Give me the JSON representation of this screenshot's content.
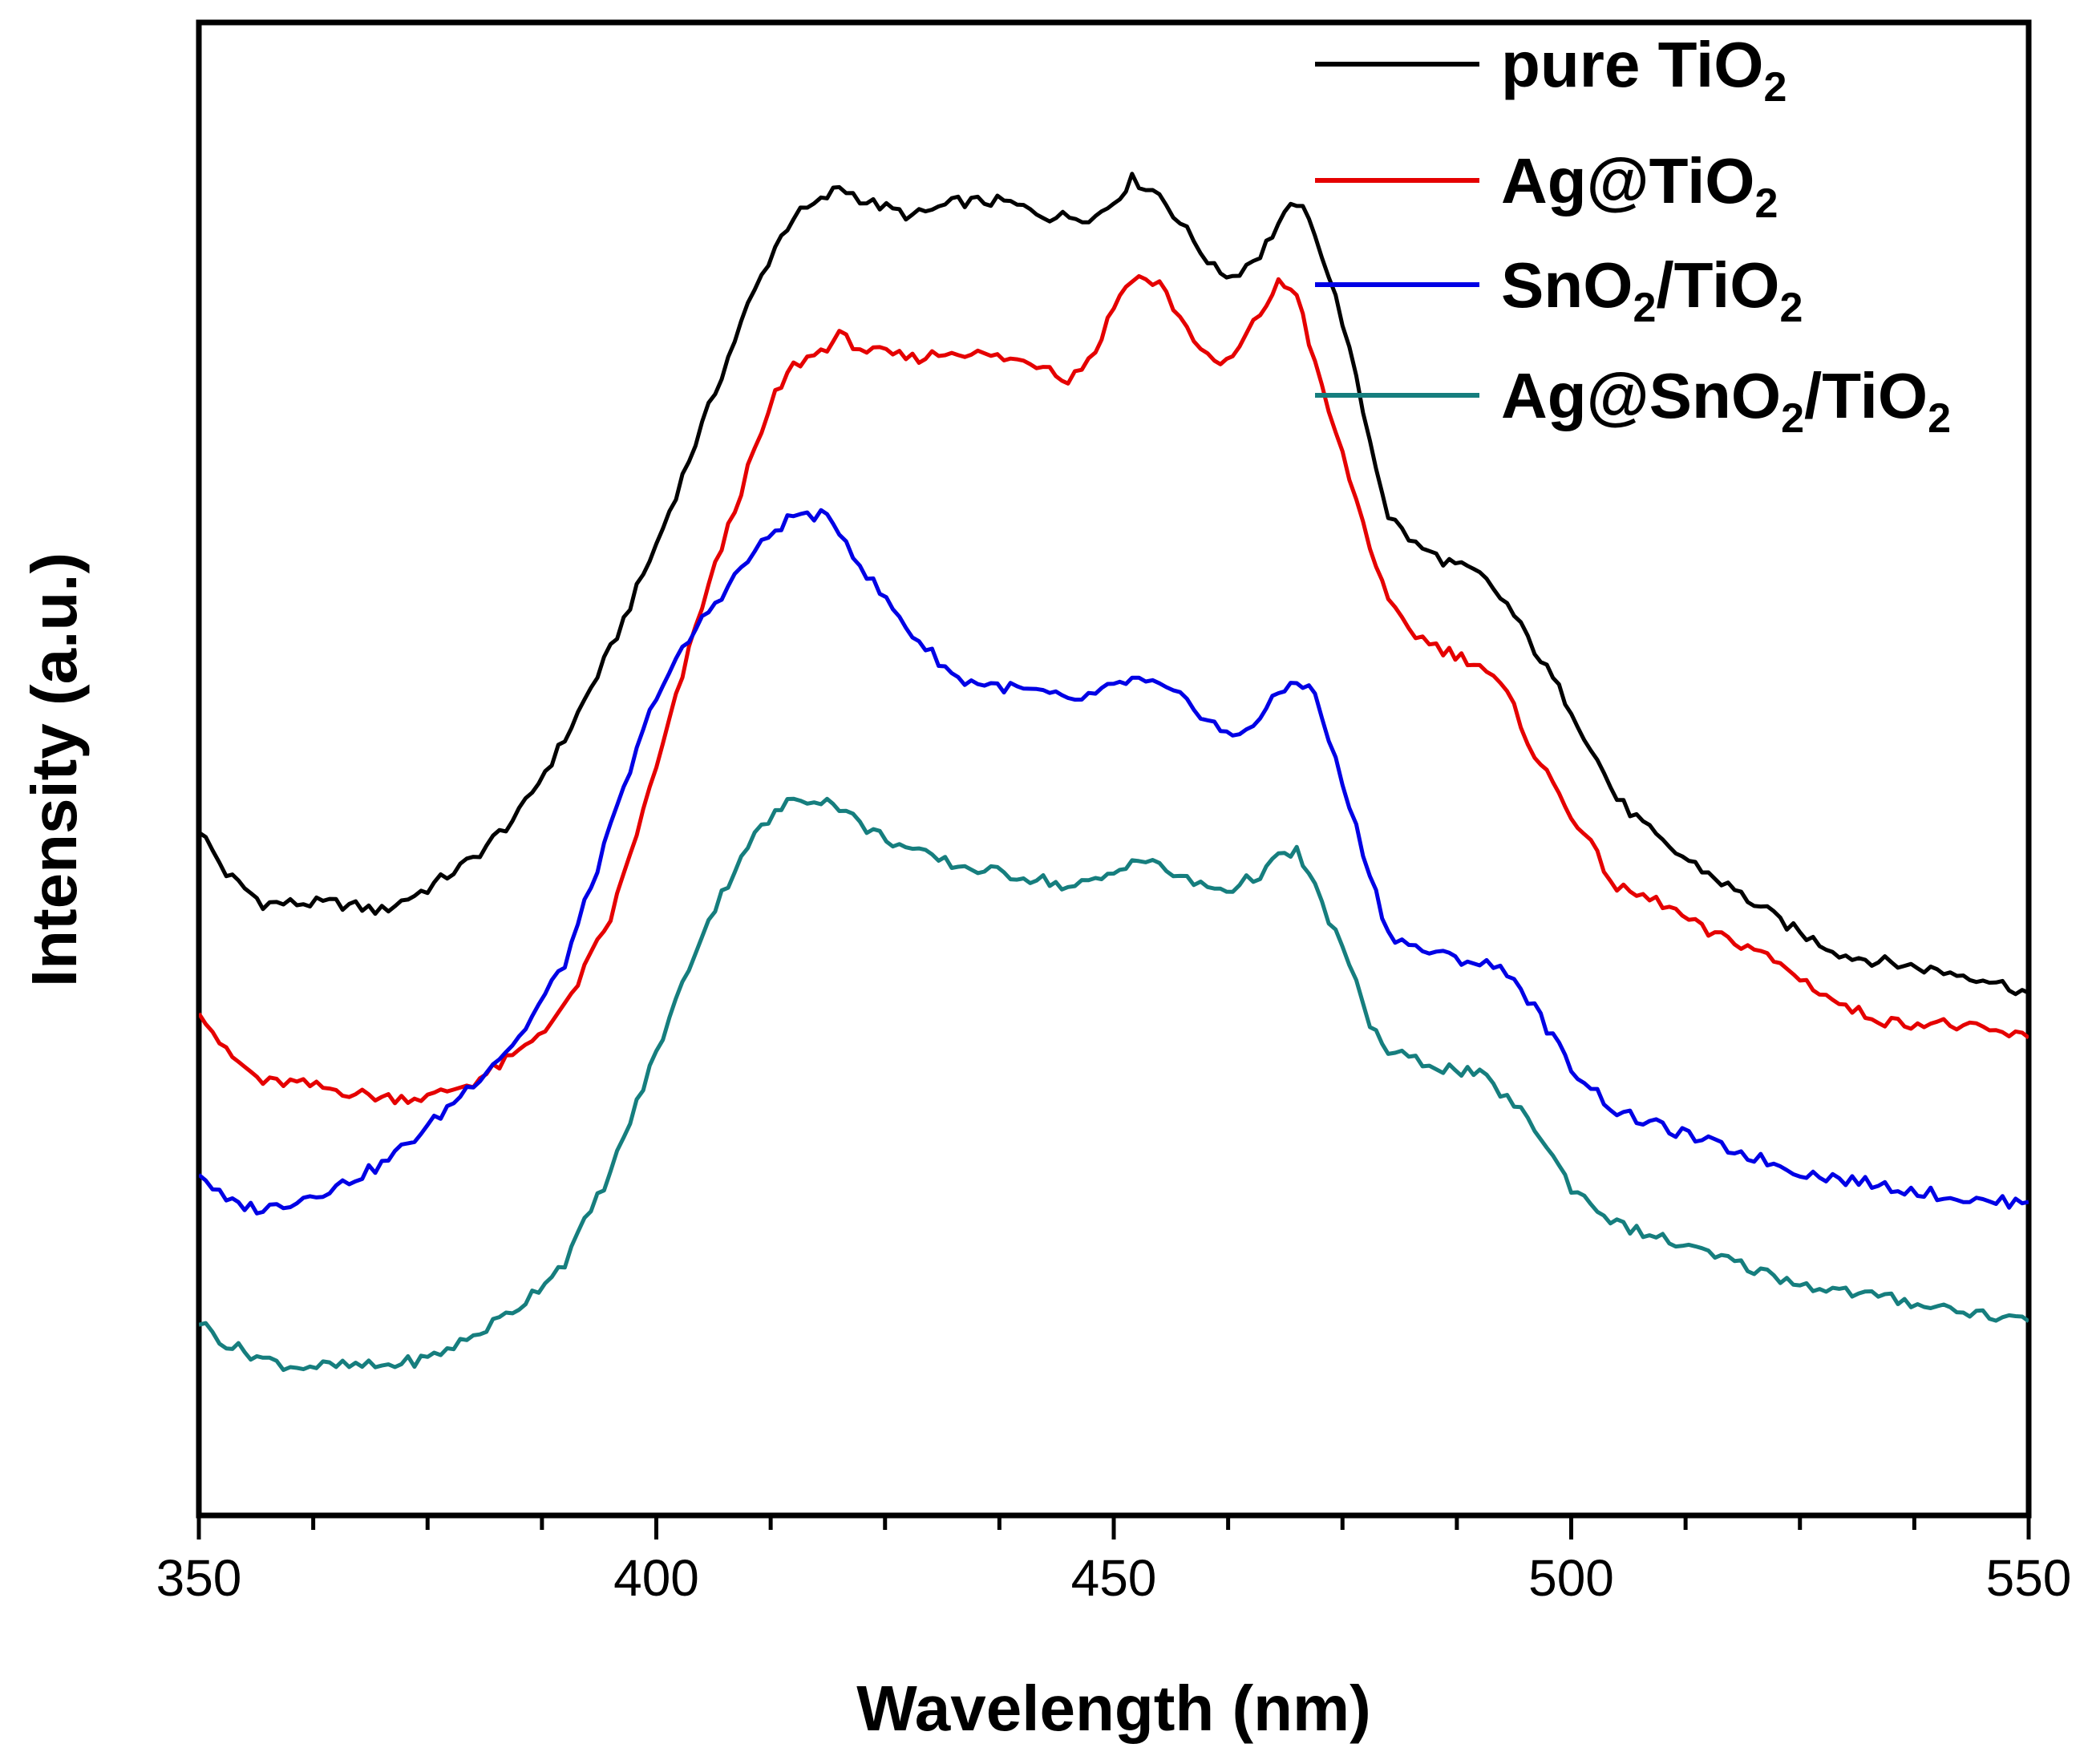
{
  "chart_data": {
    "type": "line",
    "title": "",
    "xlabel": "Wavelength (nm)",
    "ylabel": "Intensity (a.u.)",
    "xlim": [
      350,
      550
    ],
    "ylim": [
      0,
      100
    ],
    "x_ticks": [
      350,
      400,
      450,
      500,
      550
    ],
    "y_ticks_shown": false,
    "legend_position": "top-right",
    "series": [
      {
        "name": "pure TiO2",
        "label_main": "pure TiO",
        "label_sub": "2",
        "label_tail": "",
        "color": "#000000",
        "x": [
          350,
          353,
          357,
          360,
          365,
          370,
          375,
          380,
          385,
          390,
          395,
          400,
          405,
          410,
          413,
          415,
          418,
          420,
          423,
          428,
          433,
          438,
          443,
          448,
          450,
          452,
          455,
          458,
          461,
          463,
          466,
          468,
          470,
          472,
          475,
          478,
          480,
          483,
          486,
          490,
          493,
          496,
          500,
          505,
          510,
          515,
          520,
          525,
          530,
          535,
          540,
          545,
          550
        ],
        "y": [
          46,
          43,
          41,
          41,
          41,
          40.5,
          42,
          44,
          47,
          52,
          58,
          65,
          73,
          81,
          85,
          87,
          88,
          89,
          88,
          87,
          88,
          88,
          87,
          87,
          88,
          89.5,
          88.5,
          86,
          83.5,
          83,
          84.5,
          86.5,
          88,
          86,
          80,
          72,
          67,
          65,
          64,
          63,
          61,
          58,
          54,
          48,
          45,
          43,
          41,
          39,
          37.5,
          37,
          36.5,
          36,
          35
        ]
      },
      {
        "name": "Ag@TiO2",
        "label_main": "Ag@TiO",
        "label_sub": "2",
        "label_tail": "",
        "color": "#e50000",
        "x": [
          350,
          353,
          357,
          360,
          365,
          370,
          375,
          380,
          385,
          390,
          395,
          400,
          405,
          410,
          413,
          415,
          418,
          420,
          423,
          428,
          433,
          438,
          443,
          445,
          448,
          450,
          452,
          455,
          458,
          461,
          463,
          466,
          468,
          470,
          472,
          475,
          478,
          480,
          483,
          486,
          490,
          493,
          496,
          500,
          505,
          510,
          515,
          520,
          525,
          530,
          535,
          540,
          545,
          550
        ],
        "y": [
          34,
          31,
          29,
          29,
          28.5,
          28,
          28,
          29,
          31,
          34,
          40,
          50,
          61,
          70,
          75,
          77,
          78,
          79,
          78,
          77.5,
          78,
          77.5,
          77,
          76,
          78,
          81,
          83,
          82.5,
          79.5,
          77,
          77.5,
          80.5,
          82.5,
          82,
          77,
          71,
          65,
          61,
          59,
          58,
          57,
          55,
          51,
          47,
          42,
          41,
          39,
          38,
          36,
          34,
          33,
          33,
          32.5,
          32
        ]
      },
      {
        "name": "SnO2/TiO2",
        "label_main": "SnO",
        "label_sub": "2",
        "label_tail": "/TiO",
        "label_sub2": "2",
        "color": "#0000e5",
        "x": [
          350,
          353,
          357,
          360,
          365,
          370,
          375,
          380,
          385,
          390,
          395,
          400,
          405,
          410,
          413,
          415,
          418,
          420,
          423,
          428,
          433,
          438,
          443,
          445,
          448,
          450,
          452,
          455,
          458,
          461,
          463,
          466,
          468,
          470,
          472,
          475,
          478,
          480,
          483,
          486,
          490,
          493,
          496,
          500,
          505,
          510,
          515,
          520,
          525,
          530,
          535,
          540,
          545,
          550
        ],
        "y": [
          23,
          21,
          20.5,
          21,
          22,
          23.5,
          26,
          29,
          32,
          37,
          46,
          55,
          60,
          64,
          66,
          67,
          67,
          66,
          63,
          59,
          56,
          55.5,
          55,
          54.5,
          55,
          55.5,
          56,
          55.5,
          54.5,
          53,
          52,
          53.5,
          55,
          56,
          55,
          49,
          43,
          39,
          38,
          37.5,
          37,
          36.5,
          34,
          30,
          27,
          26,
          25,
          24,
          23,
          22.5,
          22,
          21.5,
          21,
          21
        ]
      },
      {
        "name": "Ag@SnO2/TiO2",
        "label_main": "Ag@SnO",
        "label_sub": "2",
        "label_tail": "/TiO",
        "label_sub2": "2",
        "color": "#167e7e",
        "x": [
          350,
          353,
          357,
          360,
          365,
          370,
          375,
          380,
          385,
          390,
          395,
          400,
          405,
          410,
          413,
          415,
          418,
          420,
          423,
          428,
          433,
          438,
          443,
          445,
          448,
          450,
          452,
          455,
          458,
          461,
          463,
          466,
          468,
          470,
          472,
          475,
          478,
          480,
          483,
          486,
          490,
          493,
          496,
          500,
          505,
          510,
          515,
          520,
          525,
          530,
          535,
          540,
          545,
          550
        ],
        "y": [
          13,
          11.5,
          10.5,
          10,
          10,
          10,
          10.5,
          12,
          14,
          17,
          23,
          31,
          39,
          45,
          47,
          48,
          48,
          47.5,
          46,
          44.5,
          43.5,
          43,
          42.5,
          42,
          42.5,
          43,
          44,
          43.5,
          42.5,
          42,
          42,
          43,
          44,
          44.5,
          42,
          38,
          33,
          31,
          30.5,
          30,
          29.5,
          28,
          26,
          22,
          19.5,
          18.5,
          17.5,
          16.5,
          15.5,
          15,
          14.5,
          14,
          13.5,
          13
        ]
      }
    ]
  }
}
